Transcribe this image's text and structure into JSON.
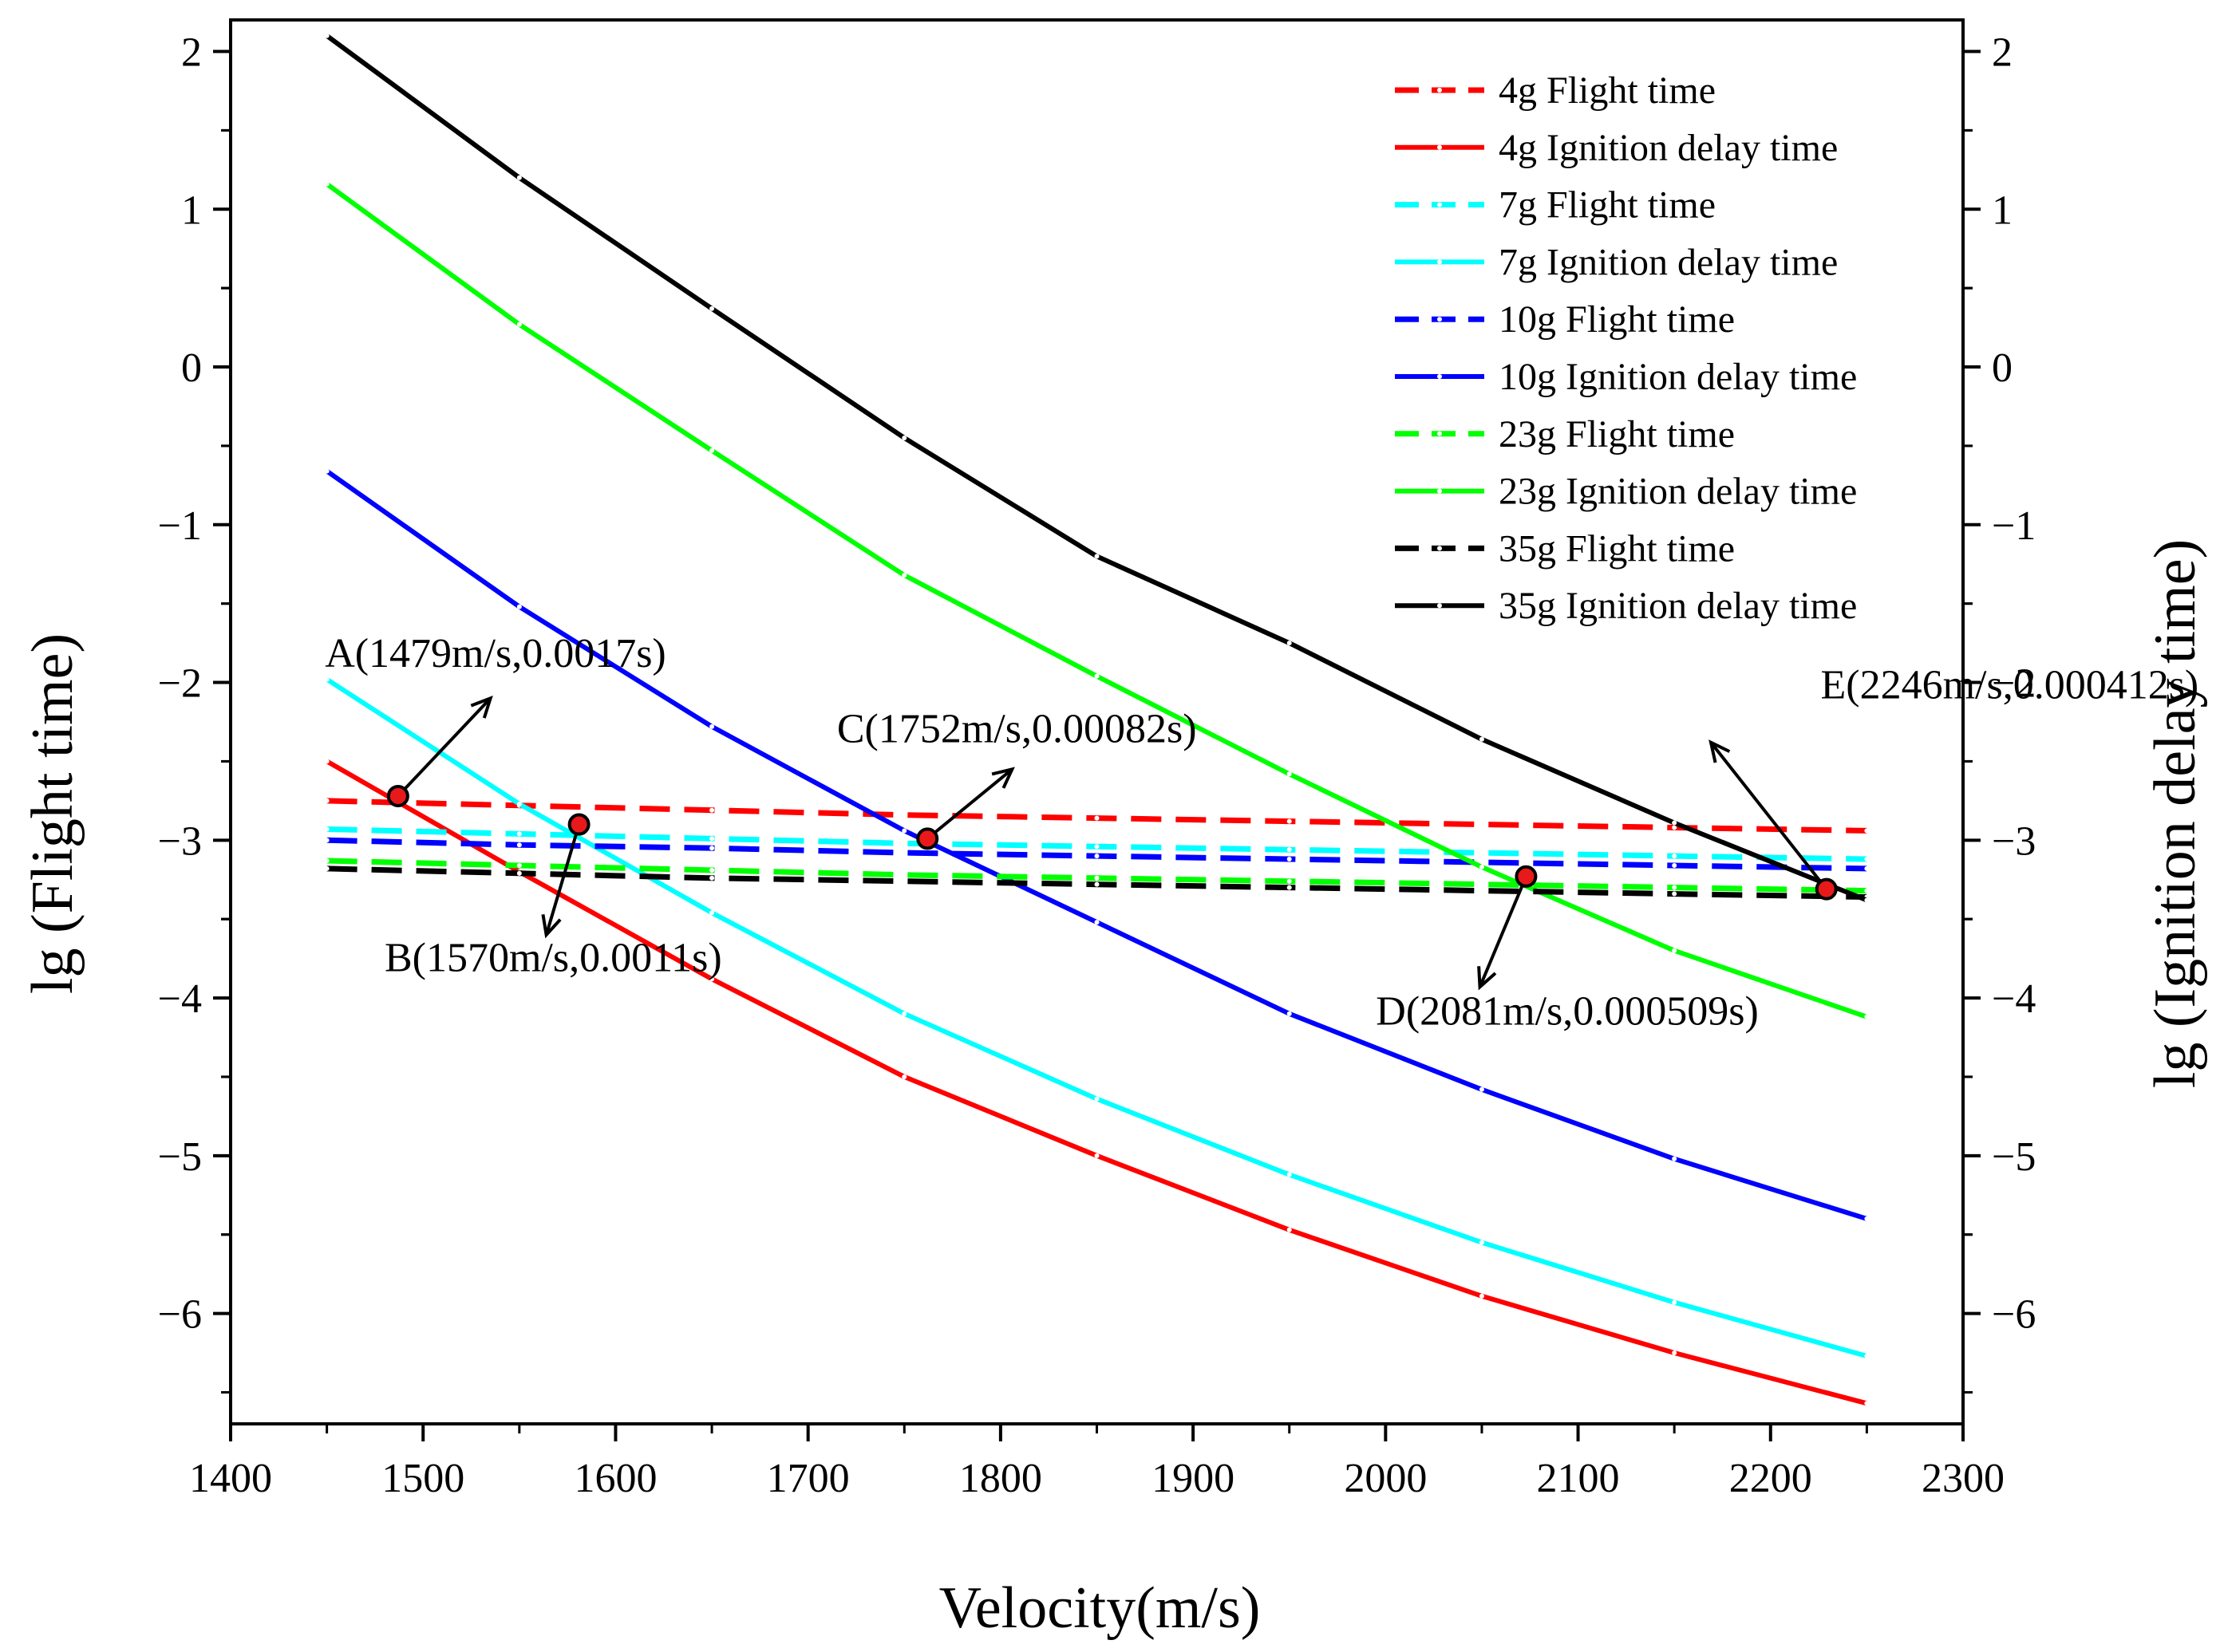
{
  "chart_data": {
    "type": "line",
    "title": "",
    "xlabel": "Velocity(m/s)",
    "ylabel_left": "lg (Flight time)",
    "ylabel_right": "lg (Ignition delay time)",
    "xlim": [
      1400,
      2300
    ],
    "ylim": [
      -6.7,
      2.2
    ],
    "xticks": [
      "1400",
      "1500",
      "1600",
      "1700",
      "1800",
      "1900",
      "2000",
      "2100",
      "2200",
      "2300"
    ],
    "yticks": [
      "2",
      "1",
      "0",
      "−1",
      "−2",
      "−3",
      "−4",
      "−5",
      "−6"
    ],
    "legend_position": "top-right",
    "x": [
      1450,
      1550,
      1650,
      1750,
      1850,
      1950,
      2050,
      2150,
      2250
    ],
    "series": [
      {
        "name": "4g Flight time",
        "color": "#ff0000",
        "dash": true,
        "values": [
          -2.75,
          -2.78,
          -2.81,
          -2.84,
          -2.86,
          -2.88,
          -2.9,
          -2.92,
          -2.94
        ]
      },
      {
        "name": "4g Ignition delay time",
        "color": "#ff0000",
        "dash": false,
        "values": [
          -2.5,
          -3.2,
          -3.88,
          -4.5,
          -5.0,
          -5.47,
          -5.89,
          -6.25,
          -6.57
        ]
      },
      {
        "name": "7g Flight time",
        "color": "#00ffff",
        "dash": true,
        "values": [
          -2.93,
          -2.96,
          -2.99,
          -3.02,
          -3.04,
          -3.06,
          -3.08,
          -3.1,
          -3.12
        ]
      },
      {
        "name": "7g Ignition delay time",
        "color": "#00ffff",
        "dash": false,
        "values": [
          -1.98,
          -2.77,
          -3.46,
          -4.1,
          -4.64,
          -5.12,
          -5.55,
          -5.93,
          -6.27
        ]
      },
      {
        "name": "10g Flight time",
        "color": "#0000ff",
        "dash": true,
        "values": [
          -3.0,
          -3.03,
          -3.05,
          -3.08,
          -3.1,
          -3.12,
          -3.14,
          -3.16,
          -3.18
        ]
      },
      {
        "name": "10g Ignition delay time",
        "color": "#0000ff",
        "dash": false,
        "values": [
          -0.66,
          -1.52,
          -2.28,
          -2.94,
          -3.52,
          -4.1,
          -4.58,
          -5.02,
          -5.4
        ]
      },
      {
        "name": "23g Flight time",
        "color": "#00ff00",
        "dash": true,
        "values": [
          -3.13,
          -3.16,
          -3.19,
          -3.22,
          -3.24,
          -3.26,
          -3.28,
          -3.3,
          -3.32
        ]
      },
      {
        "name": "23g Ignition delay time",
        "color": "#00ff00",
        "dash": false,
        "values": [
          1.16,
          0.27,
          -0.53,
          -1.32,
          -1.96,
          -2.58,
          -3.17,
          -3.7,
          -4.12
        ]
      },
      {
        "name": "35g Flight time",
        "color": "#000000",
        "dash": true,
        "values": [
          -3.18,
          -3.21,
          -3.24,
          -3.26,
          -3.28,
          -3.3,
          -3.32,
          -3.34,
          -3.36
        ]
      },
      {
        "name": "35g Ignition delay time",
        "color": "#000000",
        "dash": false,
        "values": [
          2.1,
          1.2,
          0.37,
          -0.45,
          -1.2,
          -1.75,
          -2.36,
          -2.89,
          -3.38
        ]
      }
    ],
    "annotations": [
      {
        "label": "A(1479m/s,0.0017s)",
        "point": [
          1487,
          -2.72
        ],
        "arrow_to": [
          1535,
          -2.1
        ],
        "text_at": [
          1449,
          -1.9
        ]
      },
      {
        "label": "B(1570m/s,0.0011s)",
        "point": [
          1581,
          -2.9
        ],
        "arrow_to": [
          1564,
          -3.6
        ],
        "text_at": [
          1480,
          -3.83
        ]
      },
      {
        "label": "C(1752m/s,0.00082s)",
        "point": [
          1762,
          -2.99
        ],
        "arrow_to": [
          1806,
          -2.55
        ],
        "text_at": [
          1715,
          -2.38
        ]
      },
      {
        "label": "D(2081m/s,0.000509s)",
        "point": [
          2073,
          -3.23
        ],
        "arrow_to": [
          2049,
          -3.93
        ],
        "text_at": [
          1995,
          -4.17
        ]
      },
      {
        "label": "E(2246m/s,0.000412s)",
        "point": [
          2229,
          -3.31
        ],
        "arrow_to": [
          2169,
          -2.38
        ],
        "text_at": [
          2226,
          -2.1
        ]
      }
    ]
  }
}
